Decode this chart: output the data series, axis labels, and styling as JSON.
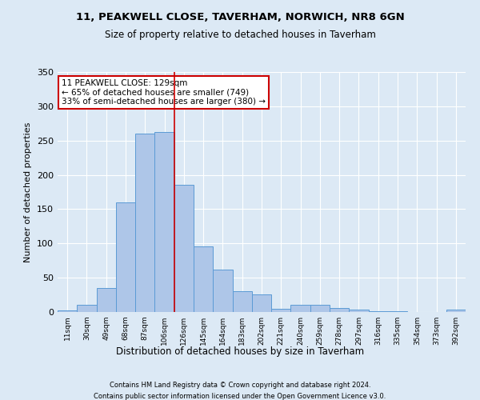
{
  "title1": "11, PEAKWELL CLOSE, TAVERHAM, NORWICH, NR8 6GN",
  "title2": "Size of property relative to detached houses in Taverham",
  "xlabel": "Distribution of detached houses by size in Taverham",
  "ylabel": "Number of detached properties",
  "categories": [
    "11sqm",
    "30sqm",
    "49sqm",
    "68sqm",
    "87sqm",
    "106sqm",
    "126sqm",
    "145sqm",
    "164sqm",
    "183sqm",
    "202sqm",
    "221sqm",
    "240sqm",
    "259sqm",
    "278sqm",
    "297sqm",
    "316sqm",
    "335sqm",
    "354sqm",
    "373sqm",
    "392sqm"
  ],
  "values": [
    2,
    10,
    35,
    160,
    260,
    262,
    185,
    96,
    62,
    30,
    26,
    5,
    11,
    10,
    6,
    4,
    1,
    1,
    0,
    0,
    3
  ],
  "bar_color": "#aec6e8",
  "bar_edge_color": "#5b9bd5",
  "vline_x": 5.5,
  "vline_color": "#cc0000",
  "annotation_text": "11 PEAKWELL CLOSE: 129sqm\n← 65% of detached houses are smaller (749)\n33% of semi-detached houses are larger (380) →",
  "annotation_box_color": "#ffffff",
  "annotation_box_edge": "#cc0000",
  "footnote1": "Contains HM Land Registry data © Crown copyright and database right 2024.",
  "footnote2": "Contains public sector information licensed under the Open Government Licence v3.0.",
  "background_color": "#dce9f5",
  "plot_bg_color": "#dce9f5",
  "ylim": [
    0,
    350
  ],
  "yticks": [
    0,
    50,
    100,
    150,
    200,
    250,
    300,
    350
  ]
}
